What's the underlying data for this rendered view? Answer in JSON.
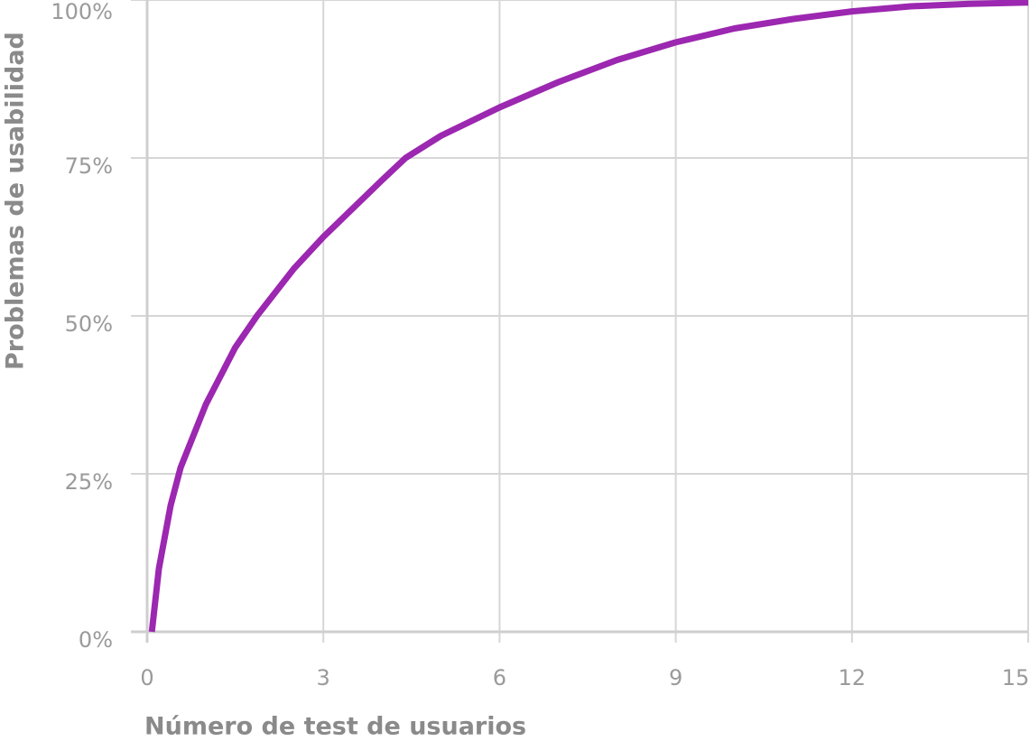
{
  "chart_data": {
    "type": "line",
    "x_label": "Número de test de usuarios",
    "y_label": "Problemas de usabilidad",
    "x": [
      0.08,
      0.2,
      0.4,
      0.57,
      1,
      1.5,
      1.87,
      2.5,
      3,
      3.5,
      4,
      4.4,
      5,
      6,
      7,
      8,
      9,
      10,
      11,
      12,
      13,
      14,
      15
    ],
    "series": [
      {
        "color": "#9c27b0",
        "values": [
          0,
          10,
          20,
          26,
          36,
          45,
          50,
          57.5,
          62.5,
          67,
          71.5,
          75,
          78.5,
          83,
          87,
          90.5,
          93.3,
          95.5,
          97,
          98.2,
          99,
          99.4,
          99.6
        ]
      }
    ],
    "xlim": [
      0,
      15
    ],
    "xticks": [
      0,
      3,
      6,
      9,
      12,
      15
    ],
    "ylim": [
      0,
      100
    ],
    "yticks": [
      {
        "value": 0,
        "label": "0%"
      },
      {
        "value": 25,
        "label": "25%"
      },
      {
        "value": 50,
        "label": "50%"
      },
      {
        "value": 75,
        "label": "75%"
      },
      {
        "value": 100,
        "label": "100%"
      }
    ],
    "grid": true
  }
}
